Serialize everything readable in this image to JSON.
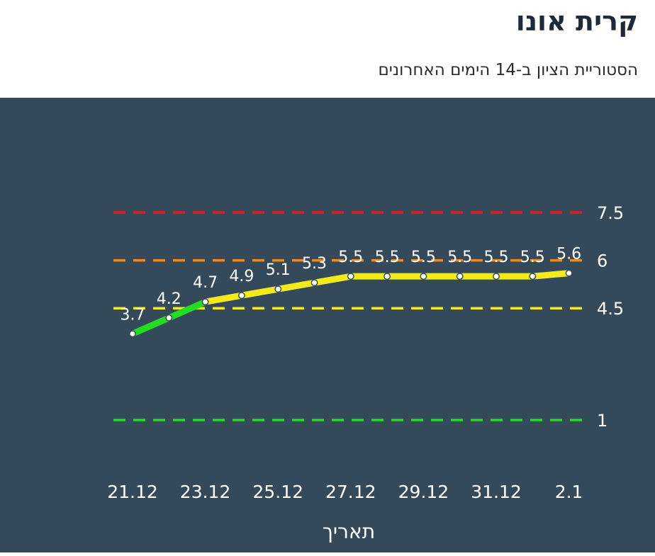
{
  "header": {
    "title": "קרית אונו",
    "subtitle": "הסטוריית הציון ב-14 הימים האחרונים"
  },
  "chart_data": {
    "type": "line",
    "xlabel": "תאריך",
    "categories": [
      "21.12",
      "22.12",
      "23.12",
      "24.12",
      "25.12",
      "26.12",
      "27.12",
      "28.12",
      "29.12",
      "30.12",
      "31.12",
      "1.1",
      "2.1"
    ],
    "tick_labels": [
      "21.12",
      "23.12",
      "25.12",
      "27.12",
      "29.12",
      "31.12",
      "2.1"
    ],
    "values": [
      3.7,
      4.2,
      4.7,
      4.9,
      5.1,
      5.3,
      5.5,
      5.5,
      5.5,
      5.5,
      5.5,
      5.5,
      5.6
    ],
    "thresholds": [
      {
        "value": 7.5,
        "label": "7.5",
        "color": "#e11b1b"
      },
      {
        "value": 6,
        "label": "6",
        "color": "#f08a1e"
      },
      {
        "value": 4.5,
        "label": "4.5",
        "color": "#f2ea1a"
      },
      {
        "value": 1,
        "label": "1",
        "color": "#22dd22"
      }
    ],
    "line_colors": {
      "below_4_5": "#22dd22",
      "above_4_5": "#f2ea1a"
    },
    "grid": false
  }
}
